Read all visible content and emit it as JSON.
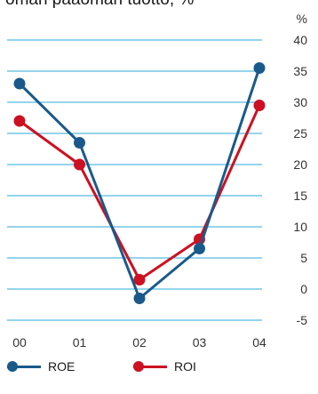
{
  "chart_data": {
    "type": "line",
    "title": "oman pääoman tuotto, %",
    "ylabel": "%",
    "categories": [
      "00",
      "01",
      "02",
      "03",
      "04"
    ],
    "ylim": [
      -5,
      40
    ],
    "yticks": [
      40,
      35,
      30,
      25,
      20,
      15,
      10,
      5,
      0,
      -5
    ],
    "grid": true,
    "legend_position": "bottom",
    "series": [
      {
        "name": "ROE",
        "values": [
          33,
          23.5,
          -1.5,
          6.5,
          35.5
        ],
        "color": "#1a5a8a"
      },
      {
        "name": "ROI",
        "values": [
          27,
          20,
          1.5,
          8,
          29.5
        ],
        "color": "#cc1122"
      }
    ],
    "grid_color": "#2aa8d8"
  }
}
